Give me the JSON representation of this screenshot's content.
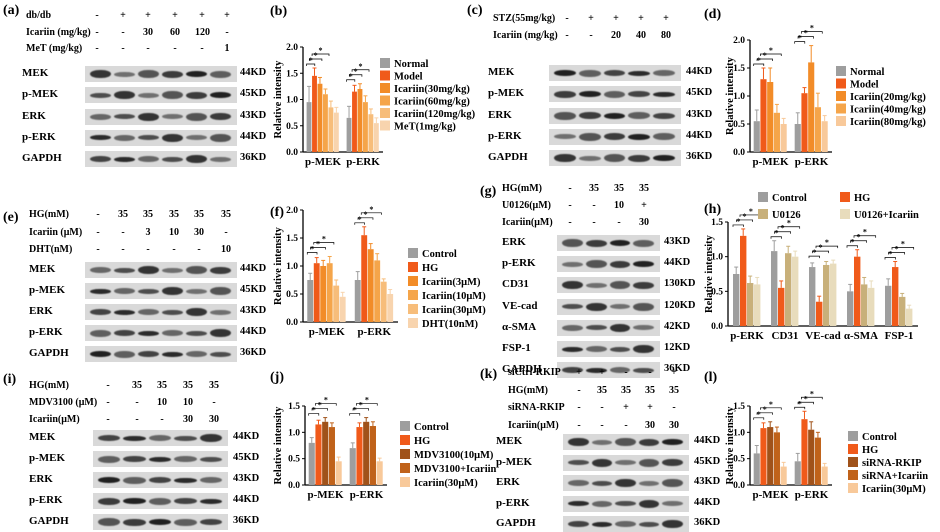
{
  "mark": "*",
  "panels": {
    "a": {
      "label": "(a)",
      "conditions": [
        {
          "name": "db/db",
          "values": [
            "-",
            "+",
            "+",
            "+",
            "+",
            "+"
          ]
        },
        {
          "name": "Icariin (mg/kg)",
          "values": [
            "-",
            "-",
            "30",
            "60",
            "120",
            "-"
          ]
        },
        {
          "name": "MeT (mg/kg)",
          "values": [
            "-",
            "-",
            "-",
            "-",
            "-",
            "1"
          ]
        }
      ],
      "blots": [
        {
          "name": "MEK",
          "kd": "44KD"
        },
        {
          "name": "p-MEK",
          "kd": "45KD"
        },
        {
          "name": "ERK",
          "kd": "43KD"
        },
        {
          "name": "p-ERK",
          "kd": "44KD"
        },
        {
          "name": "GAPDH",
          "kd": "36KD"
        }
      ]
    },
    "c": {
      "label": "(c)",
      "conditions": [
        {
          "name": "STZ(55mg/kg)",
          "values": [
            "-",
            "+",
            "+",
            "+",
            "+"
          ]
        },
        {
          "name": "Icariin (mg/kg)",
          "values": [
            "-",
            "-",
            "20",
            "40",
            "80"
          ]
        }
      ],
      "blots": [
        {
          "name": "MEK",
          "kd": "44KD"
        },
        {
          "name": "p-MEK",
          "kd": "45KD"
        },
        {
          "name": "ERK",
          "kd": "43KD"
        },
        {
          "name": "p-ERK",
          "kd": "44KD"
        },
        {
          "name": "GAPDH",
          "kd": "36KD"
        }
      ]
    },
    "e": {
      "label": "(e)",
      "conditions": [
        {
          "name": "HG(mM)",
          "values": [
            "-",
            "35",
            "35",
            "35",
            "35",
            "35"
          ]
        },
        {
          "name": "Icariin (μM)",
          "values": [
            "-",
            "-",
            "3",
            "10",
            "30",
            "-"
          ]
        },
        {
          "name": "DHT(nM)",
          "values": [
            "-",
            "-",
            "-",
            "-",
            "-",
            "10"
          ]
        }
      ],
      "blots": [
        {
          "name": "MEK",
          "kd": "44KD"
        },
        {
          "name": "p-MEK",
          "kd": "45KD"
        },
        {
          "name": "ERK",
          "kd": "43KD"
        },
        {
          "name": "p-ERK",
          "kd": "44KD"
        },
        {
          "name": "GAPDH",
          "kd": "36KD"
        }
      ]
    },
    "g": {
      "label": "(g)",
      "conditions": [
        {
          "name": "HG(mM)",
          "values": [
            "-",
            "35",
            "35",
            "35"
          ]
        },
        {
          "name": "U0126(μM)",
          "values": [
            "-",
            "-",
            "10",
            "+"
          ]
        },
        {
          "name": "Icariin(μM)",
          "values": [
            "-",
            "-",
            "-",
            "30"
          ]
        }
      ],
      "blots": [
        {
          "name": "ERK",
          "kd": "43KD"
        },
        {
          "name": "p-ERK",
          "kd": "44KD"
        },
        {
          "name": "CD31",
          "kd": "130KD"
        },
        {
          "name": "VE-cad",
          "kd": "120KD"
        },
        {
          "name": "α-SMA",
          "kd": "42KD"
        },
        {
          "name": "FSP-1",
          "kd": "12KD"
        },
        {
          "name": "GAPDH",
          "kd": "36KD"
        }
      ]
    },
    "i": {
      "label": "(i)",
      "conditions": [
        {
          "name": "HG(mM)",
          "values": [
            "-",
            "35",
            "35",
            "35",
            "35"
          ]
        },
        {
          "name": "MDV3100 (μM)",
          "values": [
            "-",
            "-",
            "10",
            "10",
            "-"
          ]
        },
        {
          "name": "Icariin(μM)",
          "values": [
            "-",
            "-",
            "-",
            "30",
            "30"
          ]
        }
      ],
      "blots": [
        {
          "name": "MEK",
          "kd": "44KD"
        },
        {
          "name": "p-MEK",
          "kd": "45KD"
        },
        {
          "name": "ERK",
          "kd": "43KD"
        },
        {
          "name": "p-ERK",
          "kd": "44KD"
        },
        {
          "name": "GAPDH",
          "kd": "36KD"
        }
      ]
    },
    "k": {
      "label": "(k)",
      "conditions": [
        {
          "name": "siCtrl-RKIP",
          "values": [
            "+",
            "+",
            "-",
            "-",
            "+"
          ]
        },
        {
          "name": "HG(mM)",
          "values": [
            "-",
            "35",
            "35",
            "35",
            "35"
          ]
        },
        {
          "name": "siRNA-RKIP",
          "values": [
            "-",
            "-",
            "+",
            "+",
            "-"
          ]
        },
        {
          "name": "Icariin(μM)",
          "values": [
            "-",
            "-",
            "-",
            "30",
            "30"
          ]
        }
      ],
      "blots": [
        {
          "name": "MEK",
          "kd": "44KD"
        },
        {
          "name": "p-MEK",
          "kd": "45KD"
        },
        {
          "name": "ERK",
          "kd": "43KD"
        },
        {
          "name": "p-ERK",
          "kd": "44KD"
        },
        {
          "name": "GAPDH",
          "kd": "36KD"
        }
      ]
    }
  },
  "chart_data": [
    {
      "id": "b",
      "label": "(b)",
      "type": "bar",
      "ylabel": "Relative intensity",
      "ylim": [
        0,
        2.0
      ],
      "yticks": [
        0.0,
        0.5,
        1.0,
        1.5,
        2.0
      ],
      "tick_labels": [
        "0.0",
        "0.5",
        "1.0",
        "1.5",
        "2.0"
      ],
      "categories": [
        "p-MEK",
        "p-ERK"
      ],
      "series": [
        {
          "name": "Normal",
          "color": "#9e9e9e",
          "values": [
            0.95,
            0.65
          ],
          "errors": [
            0.3,
            0.22
          ]
        },
        {
          "name": "Model",
          "color": "#f05a1a",
          "values": [
            1.45,
            1.15
          ],
          "errors": [
            0.15,
            0.12
          ]
        },
        {
          "name": "Icariin(30mg/kg)",
          "color": "#f28c28",
          "values": [
            1.3,
            1.2
          ],
          "errors": [
            0.12,
            0.1
          ]
        },
        {
          "name": "Icariin(60mg/kg)",
          "color": "#f5a54a",
          "values": [
            1.1,
            0.95
          ],
          "errors": [
            0.1,
            0.12
          ]
        },
        {
          "name": "Icariin(120mg/kg)",
          "color": "#f7bd7a",
          "values": [
            0.85,
            0.72
          ],
          "errors": [
            0.12,
            0.1
          ]
        },
        {
          "name": "MeT(1mg/kg)",
          "color": "#f8d4ae",
          "values": [
            0.75,
            0.55
          ],
          "errors": [
            0.1,
            0.1
          ]
        }
      ]
    },
    {
      "id": "d",
      "label": "(d)",
      "type": "bar",
      "ylabel": "Relative intensity",
      "ylim": [
        0,
        2.0
      ],
      "yticks": [
        0.0,
        0.5,
        1.0,
        1.5,
        2.0
      ],
      "tick_labels": [
        "0.0",
        "0.5",
        "1.0",
        "1.5",
        "2.0"
      ],
      "categories": [
        "p-MEK",
        "p-ERK"
      ],
      "series": [
        {
          "name": "Normal",
          "color": "#9e9e9e",
          "values": [
            0.55,
            0.5
          ],
          "errors": [
            0.2,
            0.2
          ]
        },
        {
          "name": "Model",
          "color": "#f05a1a",
          "values": [
            1.3,
            1.05
          ],
          "errors": [
            0.2,
            0.1
          ]
        },
        {
          "name": "Icariin(20mg/kg)",
          "color": "#f28c28",
          "values": [
            1.25,
            1.6
          ],
          "errors": [
            0.25,
            0.3
          ]
        },
        {
          "name": "Icariin(40mg/kg)",
          "color": "#f5a54a",
          "values": [
            0.7,
            0.8
          ],
          "errors": [
            0.15,
            0.25
          ]
        },
        {
          "name": "Icariin(80mg/kg)",
          "color": "#f8c99a",
          "values": [
            0.5,
            0.55
          ],
          "errors": [
            0.1,
            0.1
          ]
        }
      ]
    },
    {
      "id": "f",
      "label": "(f)",
      "type": "bar",
      "ylabel": "Relative intensity",
      "ylim": [
        0,
        2.0
      ],
      "yticks": [
        0.0,
        0.5,
        1.0,
        1.5,
        2.0
      ],
      "tick_labels": [
        "0.0",
        "0.5",
        "1.0",
        "1.5",
        "2.0"
      ],
      "categories": [
        "p-MEK",
        "p-ERK"
      ],
      "series": [
        {
          "name": "Control",
          "color": "#9e9e9e",
          "values": [
            0.75,
            0.75
          ],
          "errors": [
            0.12,
            0.15
          ]
        },
        {
          "name": "HG",
          "color": "#f05a1a",
          "values": [
            1.05,
            1.55
          ],
          "errors": [
            0.1,
            0.15
          ]
        },
        {
          "name": "Icariin(3μM)",
          "color": "#f28c28",
          "values": [
            1.0,
            1.3
          ],
          "errors": [
            0.1,
            0.1
          ]
        },
        {
          "name": "Icariin(10μM)",
          "color": "#f5a54a",
          "values": [
            1.05,
            1.1
          ],
          "errors": [
            0.12,
            0.12
          ]
        },
        {
          "name": "Icariin(30μM)",
          "color": "#f7bd7a",
          "values": [
            0.65,
            0.72
          ],
          "errors": [
            0.1,
            0.05
          ]
        },
        {
          "name": "DHT(10nM)",
          "color": "#f8d4ae",
          "values": [
            0.45,
            0.5
          ],
          "errors": [
            0.08,
            0.08
          ]
        }
      ]
    },
    {
      "id": "h",
      "label": "(h)",
      "type": "bar",
      "ylabel": "Relative intensity",
      "ylim": [
        0,
        1.5
      ],
      "yticks": [
        0.0,
        0.5,
        1.0,
        1.5
      ],
      "tick_labels": [
        "0.0",
        "0.5",
        "1.0",
        "1.5"
      ],
      "categories": [
        "p-ERK",
        "CD31",
        "VE-cad",
        "α-SMA",
        "FSP-1"
      ],
      "series": [
        {
          "name": "Control",
          "color": "#9e9e9e",
          "values": [
            0.75,
            1.08,
            0.85,
            0.5,
            0.58
          ],
          "errors": [
            0.1,
            0.15,
            0.06,
            0.1,
            0.1
          ]
        },
        {
          "name": "HG",
          "color": "#f05a1a",
          "values": [
            1.3,
            0.55,
            0.35,
            1.0,
            0.85
          ],
          "errors": [
            0.1,
            0.1,
            0.08,
            0.1,
            0.08
          ]
        },
        {
          "name": "U0126",
          "color": "#c8b07a",
          "values": [
            0.62,
            1.05,
            0.88,
            0.6,
            0.42
          ],
          "errors": [
            0.1,
            0.1,
            0.05,
            0.1,
            0.05
          ]
        },
        {
          "name": "U0126+Icariin",
          "color": "#e8dcbc",
          "values": [
            0.6,
            1.0,
            0.9,
            0.55,
            0.25
          ],
          "errors": [
            0.1,
            0.08,
            0.05,
            0.1,
            0.05
          ]
        }
      ]
    },
    {
      "id": "j",
      "label": "(j)",
      "type": "bar",
      "ylabel": "Relative intensity",
      "ylim": [
        0,
        1.5
      ],
      "yticks": [
        0.0,
        0.5,
        1.0,
        1.5
      ],
      "tick_labels": [
        "0.0",
        "0.5",
        "1.0",
        "1.5"
      ],
      "categories": [
        "p-MEK",
        "p-ERK"
      ],
      "series": [
        {
          "name": "Control",
          "color": "#9e9e9e",
          "values": [
            0.8,
            0.7
          ],
          "errors": [
            0.1,
            0.1
          ]
        },
        {
          "name": "HG",
          "color": "#f05a1a",
          "values": [
            1.15,
            1.1
          ],
          "errors": [
            0.08,
            0.08
          ]
        },
        {
          "name": "MDV3100(10μM)",
          "color": "#a0521a",
          "values": [
            1.2,
            1.2
          ],
          "errors": [
            0.08,
            0.08
          ]
        },
        {
          "name": "MDV3100+Icariin",
          "color": "#c0621a",
          "values": [
            1.1,
            1.12
          ],
          "errors": [
            0.08,
            0.08
          ]
        },
        {
          "name": "Icariin(30μM)",
          "color": "#f8c99a",
          "values": [
            0.45,
            0.45
          ],
          "errors": [
            0.08,
            0.06
          ]
        }
      ]
    },
    {
      "id": "l",
      "label": "(l)",
      "type": "bar",
      "ylabel": "Relative intensity",
      "ylim": [
        0,
        1.5
      ],
      "yticks": [
        0.0,
        0.5,
        1.0,
        1.5
      ],
      "tick_labels": [
        "0.0",
        "0.5",
        "1.0",
        "1.5"
      ],
      "categories": [
        "p-MEK",
        "p-ERK"
      ],
      "series": [
        {
          "name": "Control",
          "color": "#9e9e9e",
          "values": [
            0.6,
            0.45
          ],
          "errors": [
            0.15,
            0.15
          ]
        },
        {
          "name": "HG",
          "color": "#f05a1a",
          "values": [
            1.08,
            1.25
          ],
          "errors": [
            0.1,
            0.15
          ]
        },
        {
          "name": "siRNA-RKIP",
          "color": "#a0521a",
          "values": [
            1.1,
            1.05
          ],
          "errors": [
            0.1,
            0.15
          ]
        },
        {
          "name": "siRNA+Icariin",
          "color": "#c0621a",
          "values": [
            1.0,
            0.9
          ],
          "errors": [
            0.1,
            0.1
          ]
        },
        {
          "name": "Icariin(30μM)",
          "color": "#f8c99a",
          "values": [
            0.35,
            0.35
          ],
          "errors": [
            0.08,
            0.06
          ]
        }
      ]
    }
  ]
}
